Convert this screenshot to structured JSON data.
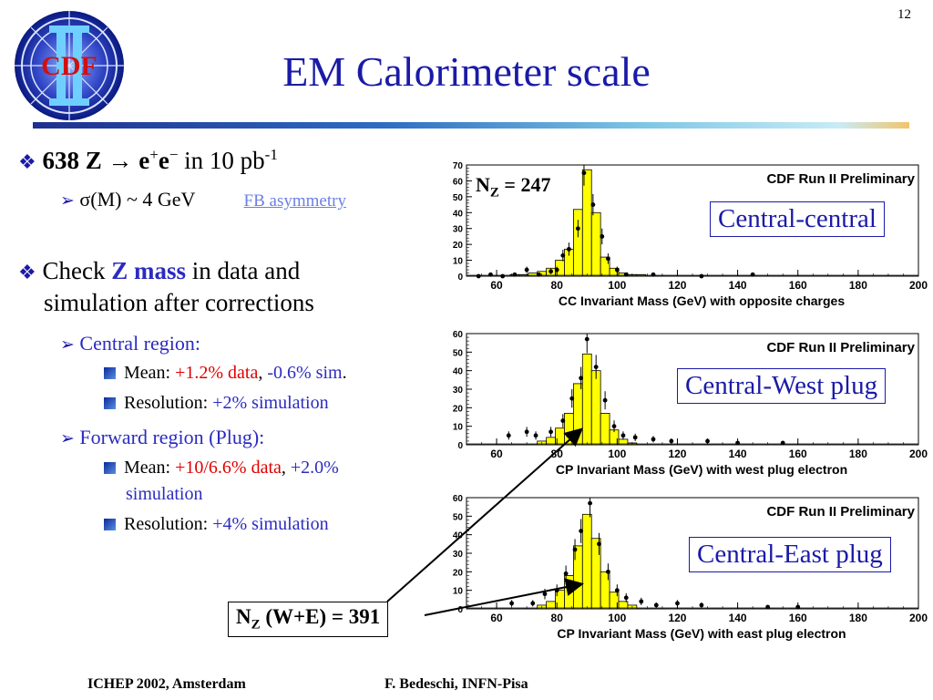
{
  "slide_number": "12",
  "logo_text": "CDF",
  "title": "EM Calorimeter scale",
  "bullets": {
    "b1": {
      "count": "638 Z",
      "arrow": "→",
      "e": "e",
      "sup_plus": "+",
      "e2": "e",
      "sup_minus": "−",
      "rest": " in 10 pb",
      "sup_rest": "-1"
    },
    "b1_sub": {
      "sigma": "σ(M) ~ 4 GeV",
      "link": "FB asymmetry"
    },
    "b2": {
      "pre": "Check ",
      "strong": "Z mass",
      "post": " in data and",
      "line2": "simulation after corrections"
    },
    "central": {
      "label": "Central region:",
      "mean_label": "Mean: ",
      "mean_data": "+1.2% data",
      "comma": ", ",
      "mean_sim": "-0.6% sim",
      "period": ".",
      "res_label": "Resolution: ",
      "res_val": "+2% simulation"
    },
    "forward": {
      "label": "Forward region (Plug):",
      "mean_label": "Mean: ",
      "mean_data": "+10/6.6% data",
      "comma": ", ",
      "mean_sim": "+2.0%",
      "mean_sim2": "simulation",
      "res_label": "Resolution: ",
      "res_val": "+4% simulation"
    }
  },
  "annotations": {
    "nz1": "N",
    "nz1_sub": "Z",
    "nz1_val": " = 247",
    "nz2": "N",
    "nz2_sub": "Z",
    "nz2_val": "  (W+E) = 391"
  },
  "region_labels": [
    "Central-central",
    "Central-West plug",
    "Central-East plug"
  ],
  "footer": {
    "left": "ICHEP 2002, Amsterdam",
    "right": "F. Bedeschi, INFN-Pisa"
  },
  "colors": {
    "title": "#1a1aa8",
    "accent_red": "#e00000",
    "histogram_fill": "#ffff00"
  },
  "chart_data": [
    {
      "type": "bar",
      "title": "CDF Run II Preliminary",
      "xlabel": "CC Invariant Mass (GeV) with opposite charges",
      "xlim": [
        50,
        200
      ],
      "ylim": [
        0,
        70
      ],
      "x_ticks": [
        60,
        80,
        100,
        120,
        140,
        160,
        180,
        200
      ],
      "y_ticks": [
        0,
        10,
        20,
        30,
        40,
        50,
        60,
        70
      ],
      "bin_width": 3,
      "x": [
        66,
        69,
        72,
        75,
        78,
        81,
        84,
        87,
        90,
        93,
        96,
        99,
        102,
        105,
        108,
        111,
        114
      ],
      "values": [
        1,
        1,
        2,
        3,
        5,
        10,
        17,
        42,
        67,
        40,
        12,
        5,
        2,
        1,
        1,
        0,
        0
      ],
      "points": [
        [
          54,
          0
        ],
        [
          58,
          1
        ],
        [
          62,
          0
        ],
        [
          66,
          1
        ],
        [
          70,
          4
        ],
        [
          74,
          1
        ],
        [
          78,
          3
        ],
        [
          80,
          4
        ],
        [
          82,
          13
        ],
        [
          84,
          17
        ],
        [
          87,
          30
        ],
        [
          89,
          65
        ],
        [
          92,
          45
        ],
        [
          95,
          25
        ],
        [
          97,
          11
        ],
        [
          100,
          4
        ],
        [
          103,
          1
        ],
        [
          112,
          1
        ],
        [
          128,
          0
        ],
        [
          145,
          1
        ]
      ]
    },
    {
      "type": "bar",
      "title": "CDF Run II Preliminary",
      "xlabel": "CP Invariant Mass (GeV) with west plug electron",
      "xlim": [
        50,
        200
      ],
      "ylim": [
        0,
        60
      ],
      "x_ticks": [
        60,
        80,
        100,
        120,
        140,
        160,
        180,
        200
      ],
      "y_ticks": [
        0,
        10,
        20,
        30,
        40,
        50,
        60
      ],
      "bin_width": 3,
      "x": [
        75,
        78,
        81,
        84,
        87,
        90,
        93,
        96,
        99,
        102,
        105
      ],
      "values": [
        2,
        4,
        9,
        17,
        33,
        49,
        40,
        17,
        8,
        3,
        1
      ],
      "points": [
        [
          64,
          5
        ],
        [
          70,
          7
        ],
        [
          73,
          5
        ],
        [
          78,
          7
        ],
        [
          82,
          13
        ],
        [
          85,
          25
        ],
        [
          88,
          36
        ],
        [
          90,
          57
        ],
        [
          93,
          42
        ],
        [
          96,
          24
        ],
        [
          99,
          10
        ],
        [
          102,
          5
        ],
        [
          106,
          4
        ],
        [
          112,
          3
        ],
        [
          118,
          2
        ],
        [
          130,
          2
        ],
        [
          140,
          1
        ],
        [
          155,
          1
        ]
      ]
    },
    {
      "type": "bar",
      "title": "CDF Run II Preliminary",
      "xlabel": "CP Invariant Mass (GeV) with east plug electron",
      "xlim": [
        50,
        200
      ],
      "ylim": [
        0,
        60
      ],
      "x_ticks": [
        60,
        80,
        100,
        120,
        140,
        160,
        180,
        200
      ],
      "y_ticks": [
        0,
        10,
        20,
        30,
        40,
        50,
        60
      ],
      "bin_width": 3,
      "x": [
        75,
        78,
        81,
        84,
        87,
        90,
        93,
        96,
        99,
        102,
        105
      ],
      "values": [
        2,
        4,
        10,
        18,
        34,
        51,
        38,
        20,
        9,
        4,
        2
      ],
      "points": [
        [
          65,
          3
        ],
        [
          72,
          3
        ],
        [
          76,
          8
        ],
        [
          80,
          10
        ],
        [
          83,
          19
        ],
        [
          86,
          32
        ],
        [
          88,
          42
        ],
        [
          91,
          57
        ],
        [
          94,
          35
        ],
        [
          97,
          20
        ],
        [
          100,
          10
        ],
        [
          103,
          6
        ],
        [
          108,
          4
        ],
        [
          113,
          2
        ],
        [
          120,
          3
        ],
        [
          128,
          2
        ],
        [
          150,
          1
        ],
        [
          160,
          1
        ]
      ]
    }
  ]
}
